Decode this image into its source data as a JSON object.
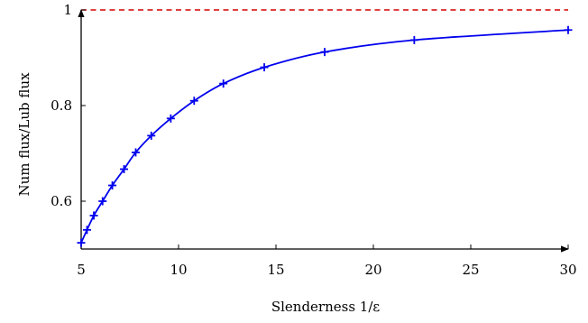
{
  "chart_data": {
    "type": "line",
    "title": "",
    "xlabel": "Slenderness 1/ε",
    "ylabel": "Num flux/Lub flux",
    "xlim": [
      5,
      30
    ],
    "ylim": [
      0.5,
      1.0
    ],
    "xticks": [
      5,
      10,
      15,
      20,
      25,
      30
    ],
    "xtick_labels": [
      "5",
      "10",
      "15",
      "20",
      "25",
      "30"
    ],
    "yticks": [
      0.6,
      0.8,
      1.0
    ],
    "ytick_labels": [
      "0.6",
      "0.8",
      "1"
    ],
    "grid": false,
    "legend": "none",
    "series": [
      {
        "color": "#0000ee",
        "marker": "plus",
        "x": [
          5.0,
          5.3,
          5.65,
          6.1,
          6.6,
          7.2,
          7.8,
          8.6,
          9.6,
          10.8,
          12.3,
          14.4,
          17.5,
          22.1,
          30.0
        ],
        "y": [
          0.513,
          0.54,
          0.57,
          0.6,
          0.633,
          0.667,
          0.702,
          0.737,
          0.773,
          0.81,
          0.846,
          0.88,
          0.912,
          0.937,
          0.958
        ]
      }
    ],
    "reference_lines": [
      {
        "y": 1.0,
        "color": "#d40000",
        "style": "dashed"
      }
    ]
  }
}
